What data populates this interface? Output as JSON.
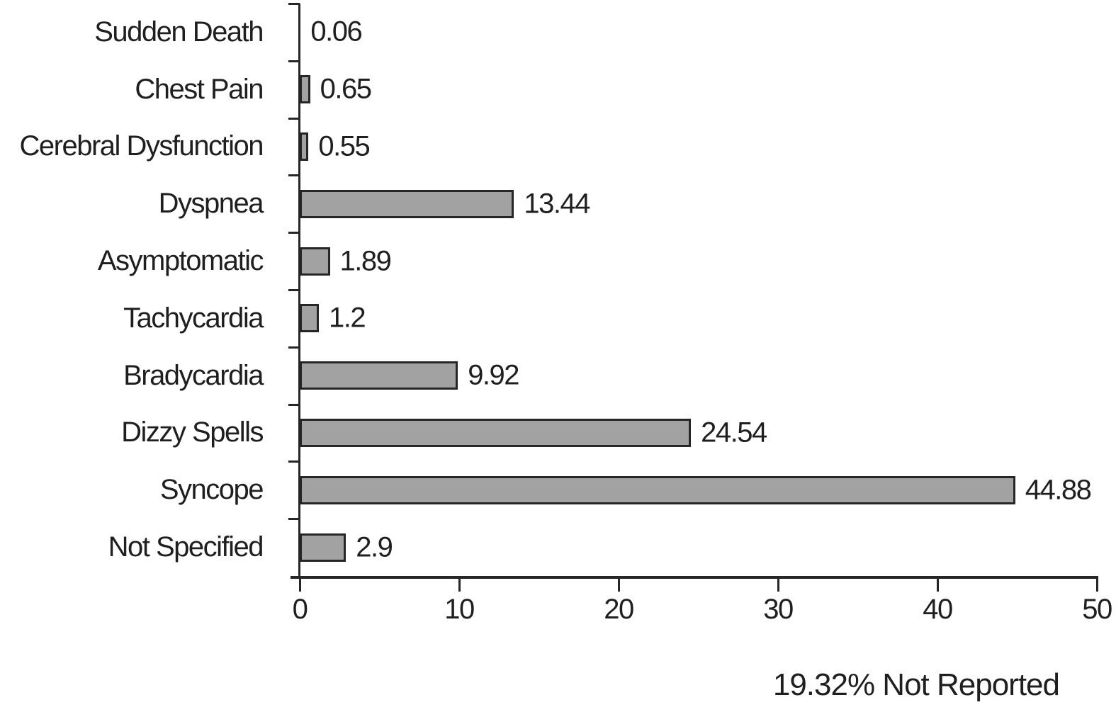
{
  "chart_data": {
    "type": "bar",
    "orientation": "horizontal",
    "categories": [
      "Sudden Death",
      "Chest Pain",
      "Cerebral Dysfunction",
      "Dyspnea",
      "Asymptomatic",
      "Tachycardia",
      "Bradycardia",
      "Dizzy Spells",
      "Syncope",
      "Not Specified"
    ],
    "values": [
      0.06,
      0.65,
      0.55,
      13.44,
      1.89,
      1.2,
      9.92,
      24.54,
      44.88,
      2.9
    ],
    "value_labels": [
      "0.06",
      "0.65",
      "0.55",
      "13.44",
      "1.89",
      "1.2",
      "9.92",
      "24.54",
      "44.88",
      "2.9"
    ],
    "title": "",
    "xlabel": "",
    "ylabel": "",
    "xlim": [
      0,
      50
    ],
    "x_ticks": [
      0,
      10,
      20,
      30,
      40,
      50
    ],
    "grid": false,
    "legend": "none",
    "annotation": "19.32% Not Reported",
    "bar_fill": "#a2a2a2",
    "bar_border": "#262626",
    "axis_color": "#262626",
    "text_color": "#1f1f1f"
  }
}
